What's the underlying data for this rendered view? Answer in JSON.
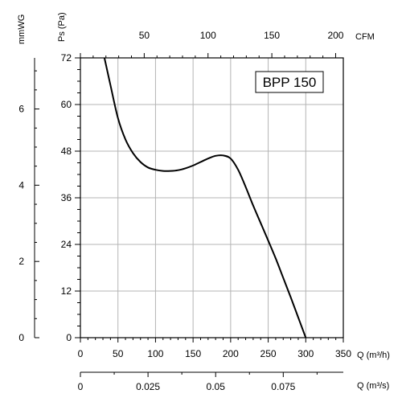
{
  "chart_data": {
    "type": "line",
    "title": "BPP 150",
    "colors": {
      "curve": "#000000",
      "grid": "#b4b4b4",
      "axis": "#000000",
      "background": "#ffffff"
    },
    "grid": true,
    "axes": {
      "x_bottom": {
        "label": "Q (m³/h)",
        "range": [
          0,
          350
        ],
        "ticks": [
          0,
          50,
          100,
          150,
          200,
          250,
          300,
          350
        ]
      },
      "x_top": {
        "label": "CFM",
        "range": [
          0,
          206
        ],
        "ticks": [
          50,
          100,
          150,
          200
        ]
      },
      "x_flow": {
        "label": "Q (m³/s)",
        "range": [
          0,
          0.0972
        ],
        "ticks": [
          0,
          0.025,
          0.05,
          0.075
        ],
        "tick_labels": [
          "0",
          "0.025",
          "0.05",
          "0.075"
        ]
      },
      "y_left": {
        "label": "Ps (Pa)",
        "range": [
          0,
          72
        ],
        "ticks": [
          0,
          12,
          24,
          36,
          48,
          60,
          72
        ]
      },
      "y_far_left": {
        "label": "mmWG",
        "range": [
          0,
          7.34
        ],
        "ticks": [
          0,
          2,
          4,
          6
        ]
      }
    },
    "series": [
      {
        "x": [
          32,
          40,
          50,
          60,
          70,
          80,
          90,
          100,
          110,
          120,
          130,
          140,
          150,
          160,
          170,
          180,
          190,
          200,
          210,
          220,
          230,
          240,
          250,
          260,
          270,
          280,
          290,
          300
        ],
        "y": [
          72,
          65,
          56.5,
          51,
          47.5,
          45.2,
          43.8,
          43.2,
          42.9,
          42.9,
          43.1,
          43.6,
          44.3,
          45.2,
          46.1,
          46.8,
          46.9,
          46.1,
          43.2,
          38.8,
          34,
          29.5,
          25,
          20.4,
          15.4,
          10.4,
          5.2,
          0
        ]
      }
    ]
  }
}
